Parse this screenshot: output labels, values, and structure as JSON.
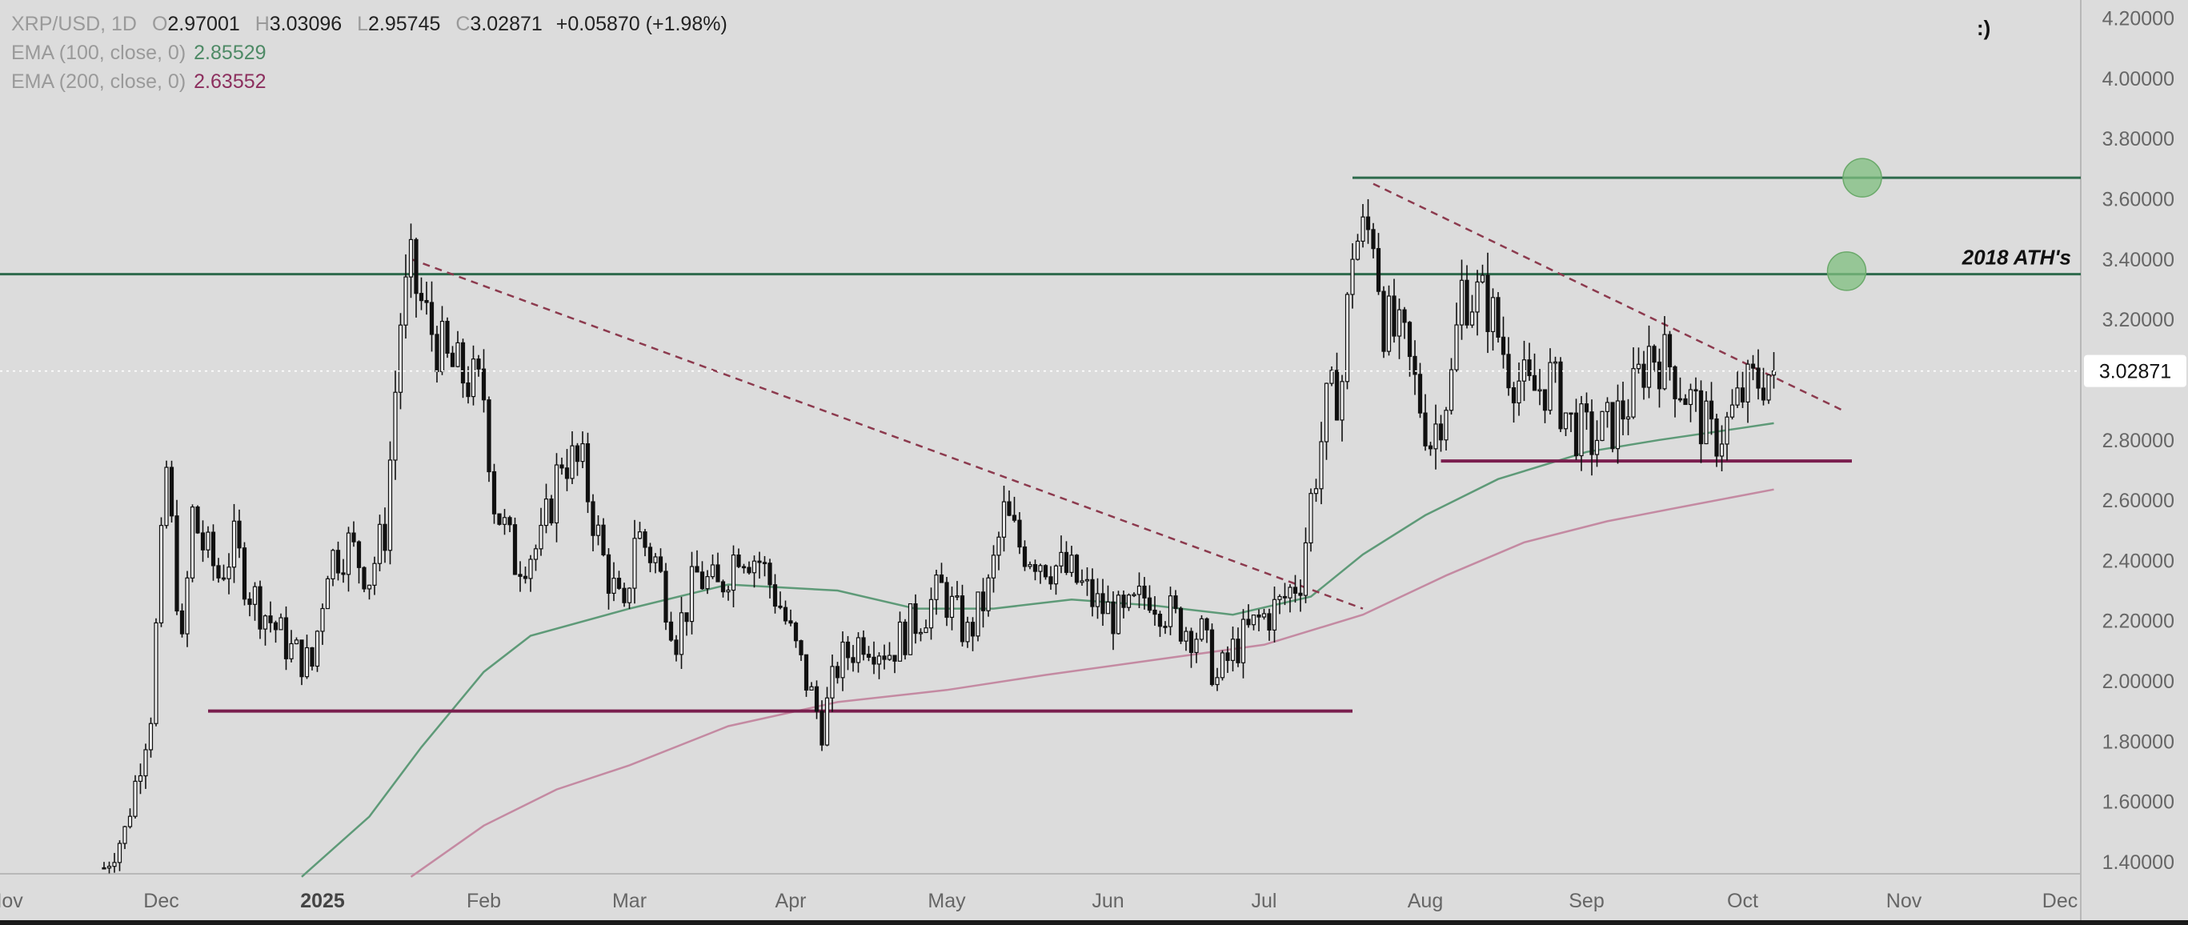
{
  "legend": {
    "symbol": "XRP/USD, 1D",
    "open_label": "O",
    "open": "2.97001",
    "high_label": "H",
    "high": "3.03096",
    "low_label": "L",
    "low": "2.95745",
    "close_label": "C",
    "close": "3.02871",
    "change": "+0.05870 (+1.98%)",
    "ema100_label": "EMA (100, close, 0)",
    "ema100_value": "2.85529",
    "ema200_label": "EMA (200, close, 0)",
    "ema200_value": "2.63552"
  },
  "annotation_smiley": ":)",
  "colors": {
    "background": "#dcdcdc",
    "candle": "#111111",
    "ema100": "#5e9a78",
    "ema200": "#c48aa2",
    "support": "#7a1f4e",
    "resistance": "#2e6a4c",
    "trendline": "#8c3a4e",
    "target_circle": "#7fbf7f"
  },
  "chart_data": {
    "type": "candlestick",
    "series_names": [
      "EMA (100, close, 0)",
      "EMA (200, close, 0)"
    ],
    "ylim": [
      1.36,
      4.26
    ],
    "x_range": [
      "2024-10-31",
      "2025-12-05"
    ],
    "y_ticks": [
      "1.40000",
      "1.60000",
      "1.80000",
      "2.00000",
      "2.20000",
      "2.40000",
      "2.60000",
      "2.80000",
      "3.00000",
      "3.20000",
      "3.40000",
      "3.60000",
      "3.80000",
      "4.00000",
      "4.20000"
    ],
    "x_ticks": [
      {
        "date": "2024-11-01",
        "label": "Nov"
      },
      {
        "date": "2024-12-01",
        "label": "Dec"
      },
      {
        "date": "2025-01-01",
        "label": "2025"
      },
      {
        "date": "2025-02-01",
        "label": "Feb"
      },
      {
        "date": "2025-03-01",
        "label": "Mar"
      },
      {
        "date": "2025-04-01",
        "label": "Apr"
      },
      {
        "date": "2025-05-01",
        "label": "May"
      },
      {
        "date": "2025-06-01",
        "label": "Jun"
      },
      {
        "date": "2025-07-01",
        "label": "Jul"
      },
      {
        "date": "2025-08-01",
        "label": "Aug"
      },
      {
        "date": "2025-09-01",
        "label": "Sep"
      },
      {
        "date": "2025-10-01",
        "label": "Oct"
      },
      {
        "date": "2025-11-01",
        "label": "Nov"
      },
      {
        "date": "2025-12-01",
        "label": "Dec"
      }
    ],
    "last_price": 3.02871,
    "last_price_label": "3.02871",
    "price_path": [
      [
        "2024-11-20",
        1.38
      ],
      [
        "2024-11-24",
        1.5
      ],
      [
        "2024-11-29",
        1.9
      ],
      [
        "2024-12-02",
        2.7
      ],
      [
        "2024-12-05",
        2.1
      ],
      [
        "2024-12-07",
        2.55
      ],
      [
        "2024-12-09",
        2.45
      ],
      [
        "2024-12-12",
        2.35
      ],
      [
        "2024-12-15",
        2.45
      ],
      [
        "2024-12-18",
        2.3
      ],
      [
        "2024-12-22",
        2.2
      ],
      [
        "2024-12-26",
        2.1
      ],
      [
        "2024-12-30",
        2.05
      ],
      [
        "2025-01-02",
        2.4
      ],
      [
        "2025-01-06",
        2.45
      ],
      [
        "2025-01-10",
        2.35
      ],
      [
        "2025-01-13",
        2.5
      ],
      [
        "2025-01-16",
        3.2
      ],
      [
        "2025-01-18",
        3.35
      ],
      [
        "2025-01-21",
        3.2
      ],
      [
        "2025-01-25",
        3.05
      ],
      [
        "2025-01-29",
        3.0
      ],
      [
        "2025-02-01",
        2.95
      ],
      [
        "2025-02-03",
        2.6
      ],
      [
        "2025-02-07",
        2.4
      ],
      [
        "2025-02-12",
        2.45
      ],
      [
        "2025-02-16",
        2.75
      ],
      [
        "2025-02-20",
        2.7
      ],
      [
        "2025-02-24",
        2.4
      ],
      [
        "2025-02-28",
        2.2
      ],
      [
        "2025-03-02",
        2.5
      ],
      [
        "2025-03-06",
        2.4
      ],
      [
        "2025-03-10",
        2.15
      ],
      [
        "2025-03-14",
        2.35
      ],
      [
        "2025-03-18",
        2.3
      ],
      [
        "2025-03-22",
        2.45
      ],
      [
        "2025-03-26",
        2.4
      ],
      [
        "2025-03-30",
        2.25
      ],
      [
        "2025-04-03",
        2.05
      ],
      [
        "2025-04-07",
        1.85
      ],
      [
        "2025-04-10",
        2.05
      ],
      [
        "2025-04-15",
        2.15
      ],
      [
        "2025-04-20",
        2.1
      ],
      [
        "2025-04-25",
        2.2
      ],
      [
        "2025-04-30",
        2.3
      ],
      [
        "2025-05-05",
        2.15
      ],
      [
        "2025-05-09",
        2.3
      ],
      [
        "2025-05-12",
        2.55
      ],
      [
        "2025-05-15",
        2.45
      ],
      [
        "2025-05-20",
        2.4
      ],
      [
        "2025-05-25",
        2.35
      ],
      [
        "2025-05-30",
        2.25
      ],
      [
        "2025-06-04",
        2.2
      ],
      [
        "2025-06-09",
        2.3
      ],
      [
        "2025-06-14",
        2.2
      ],
      [
        "2025-06-19",
        2.15
      ],
      [
        "2025-06-22",
        2.0
      ],
      [
        "2025-06-25",
        2.1
      ],
      [
        "2025-06-30",
        2.2
      ],
      [
        "2025-07-04",
        2.25
      ],
      [
        "2025-07-08",
        2.35
      ],
      [
        "2025-07-10",
        2.6
      ],
      [
        "2025-07-13",
        2.9
      ],
      [
        "2025-07-16",
        3.0
      ],
      [
        "2025-07-18",
        3.45
      ],
      [
        "2025-07-22",
        3.5
      ],
      [
        "2025-07-24",
        3.2
      ],
      [
        "2025-07-28",
        3.1
      ],
      [
        "2025-08-02",
        2.8
      ],
      [
        "2025-08-06",
        3.0
      ],
      [
        "2025-08-08",
        3.3
      ],
      [
        "2025-08-13",
        3.25
      ],
      [
        "2025-08-17",
        3.05
      ],
      [
        "2025-08-21",
        2.95
      ],
      [
        "2025-08-25",
        3.0
      ],
      [
        "2025-08-29",
        2.85
      ],
      [
        "2025-09-02",
        2.8
      ],
      [
        "2025-09-06",
        2.85
      ],
      [
        "2025-09-10",
        2.95
      ],
      [
        "2025-09-13",
        3.1
      ],
      [
        "2025-09-17",
        3.05
      ],
      [
        "2025-09-22",
        2.9
      ],
      [
        "2025-09-25",
        2.8
      ],
      [
        "2025-09-28",
        2.85
      ],
      [
        "2025-10-01",
        2.95
      ],
      [
        "2025-10-04",
        3.0
      ],
      [
        "2025-10-07",
        3.02871
      ]
    ],
    "ema100_path": [
      [
        "2024-12-28",
        1.35
      ],
      [
        "2025-01-10",
        1.55
      ],
      [
        "2025-01-20",
        1.78
      ],
      [
        "2025-02-01",
        2.03
      ],
      [
        "2025-02-10",
        2.15
      ],
      [
        "2025-03-01",
        2.24
      ],
      [
        "2025-03-20",
        2.32
      ],
      [
        "2025-04-10",
        2.3
      ],
      [
        "2025-04-25",
        2.24
      ],
      [
        "2025-05-10",
        2.24
      ],
      [
        "2025-05-25",
        2.27
      ],
      [
        "2025-06-10",
        2.25
      ],
      [
        "2025-06-25",
        2.22
      ],
      [
        "2025-07-10",
        2.28
      ],
      [
        "2025-07-20",
        2.42
      ],
      [
        "2025-08-01",
        2.55
      ],
      [
        "2025-08-15",
        2.67
      ],
      [
        "2025-09-01",
        2.76
      ],
      [
        "2025-09-15",
        2.8
      ],
      [
        "2025-10-01",
        2.84
      ],
      [
        "2025-10-07",
        2.85529
      ]
    ],
    "ema200_path": [
      [
        "2025-01-18",
        1.35
      ],
      [
        "2025-02-01",
        1.52
      ],
      [
        "2025-02-15",
        1.64
      ],
      [
        "2025-03-01",
        1.72
      ],
      [
        "2025-03-20",
        1.85
      ],
      [
        "2025-04-10",
        1.93
      ],
      [
        "2025-05-01",
        1.97
      ],
      [
        "2025-05-20",
        2.02
      ],
      [
        "2025-06-10",
        2.07
      ],
      [
        "2025-07-01",
        2.12
      ],
      [
        "2025-07-20",
        2.22
      ],
      [
        "2025-08-05",
        2.35
      ],
      [
        "2025-08-20",
        2.46
      ],
      [
        "2025-09-05",
        2.53
      ],
      [
        "2025-09-20",
        2.58
      ],
      [
        "2025-10-07",
        2.63552
      ]
    ],
    "horizontal_levels": [
      {
        "type": "resistance",
        "price": 3.35,
        "from": "2024-10-31",
        "to": "2025-12-05",
        "label": "2018 ATH's"
      },
      {
        "type": "resistance",
        "price": 3.67,
        "from": "2025-07-18",
        "to": "2025-12-05"
      },
      {
        "type": "support",
        "price": 1.9,
        "from": "2024-12-10",
        "to": "2025-07-18"
      },
      {
        "type": "support",
        "price": 2.73,
        "from": "2025-08-04",
        "to": "2025-10-22"
      }
    ],
    "trendlines": [
      {
        "from": [
          "2025-01-18",
          3.4
        ],
        "to": [
          "2025-07-20",
          2.24
        ]
      },
      {
        "from": [
          "2025-07-22",
          3.65
        ],
        "to": [
          "2025-10-20",
          2.9
        ]
      }
    ],
    "target_markers": [
      {
        "date": "2025-10-24",
        "price": 3.67
      },
      {
        "date": "2025-10-21",
        "price": 3.36
      }
    ]
  }
}
